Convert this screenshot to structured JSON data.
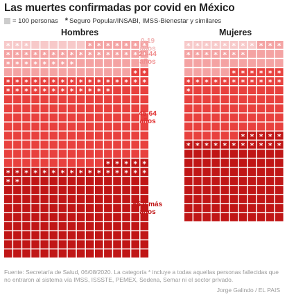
{
  "title": "Las muertes confirmadas por covid en México",
  "legend": {
    "unit_label": "= 100 personas",
    "star_symbol": "*",
    "star_label": "Seguro Popular/INSABI, IMSS-Bienestar y similares",
    "square_color": "#cccccc"
  },
  "footer": {
    "note": "Fuente: Secretaría de Salud, 06/08/2020. La categoría * incluye a todas aquellas personas fallecidas que no entraron al sistema vía IMSS, ISSSTE, PEMEX, Sedena, Semar ni el sector privado.",
    "credit": "Jorge Galindo / EL PAIS"
  },
  "chart_data": {
    "type": "waffle",
    "unit": "= 100 personas",
    "panels": [
      {
        "name": "Hombres",
        "groups": [
          {
            "label": "0-19 años",
            "squares": 9,
            "starred": 3,
            "color": "#f7c9c9",
            "label_color": "#f2b8b8"
          },
          {
            "label": "20-44 años",
            "squares": 53,
            "starred": 31,
            "color": "#f4a3a3",
            "label_color": "#f08f8f"
          },
          {
            "label": "45-64 años",
            "squares": 157,
            "starred": 30,
            "color": "#e8413e",
            "label_color": "#e02d2d"
          },
          {
            "label": "65 y más años",
            "squares": 165,
            "starred": 23,
            "color": "#c01616",
            "label_color": "#c01616"
          }
        ]
      },
      {
        "name": "Mujeres",
        "groups": [
          {
            "label": "0-19 años",
            "squares": 8,
            "starred": 8,
            "color": "#f7c9c9"
          },
          {
            "label": "20-44 años",
            "squares": 30,
            "starred": 10,
            "color": "#f4a3a3"
          },
          {
            "label": "45-64 años",
            "squares": 78,
            "starred": 18,
            "color": "#e8413e"
          },
          {
            "label": "65 y más años",
            "squares": 104,
            "starred": 16,
            "color": "#c01616"
          }
        ]
      }
    ]
  }
}
